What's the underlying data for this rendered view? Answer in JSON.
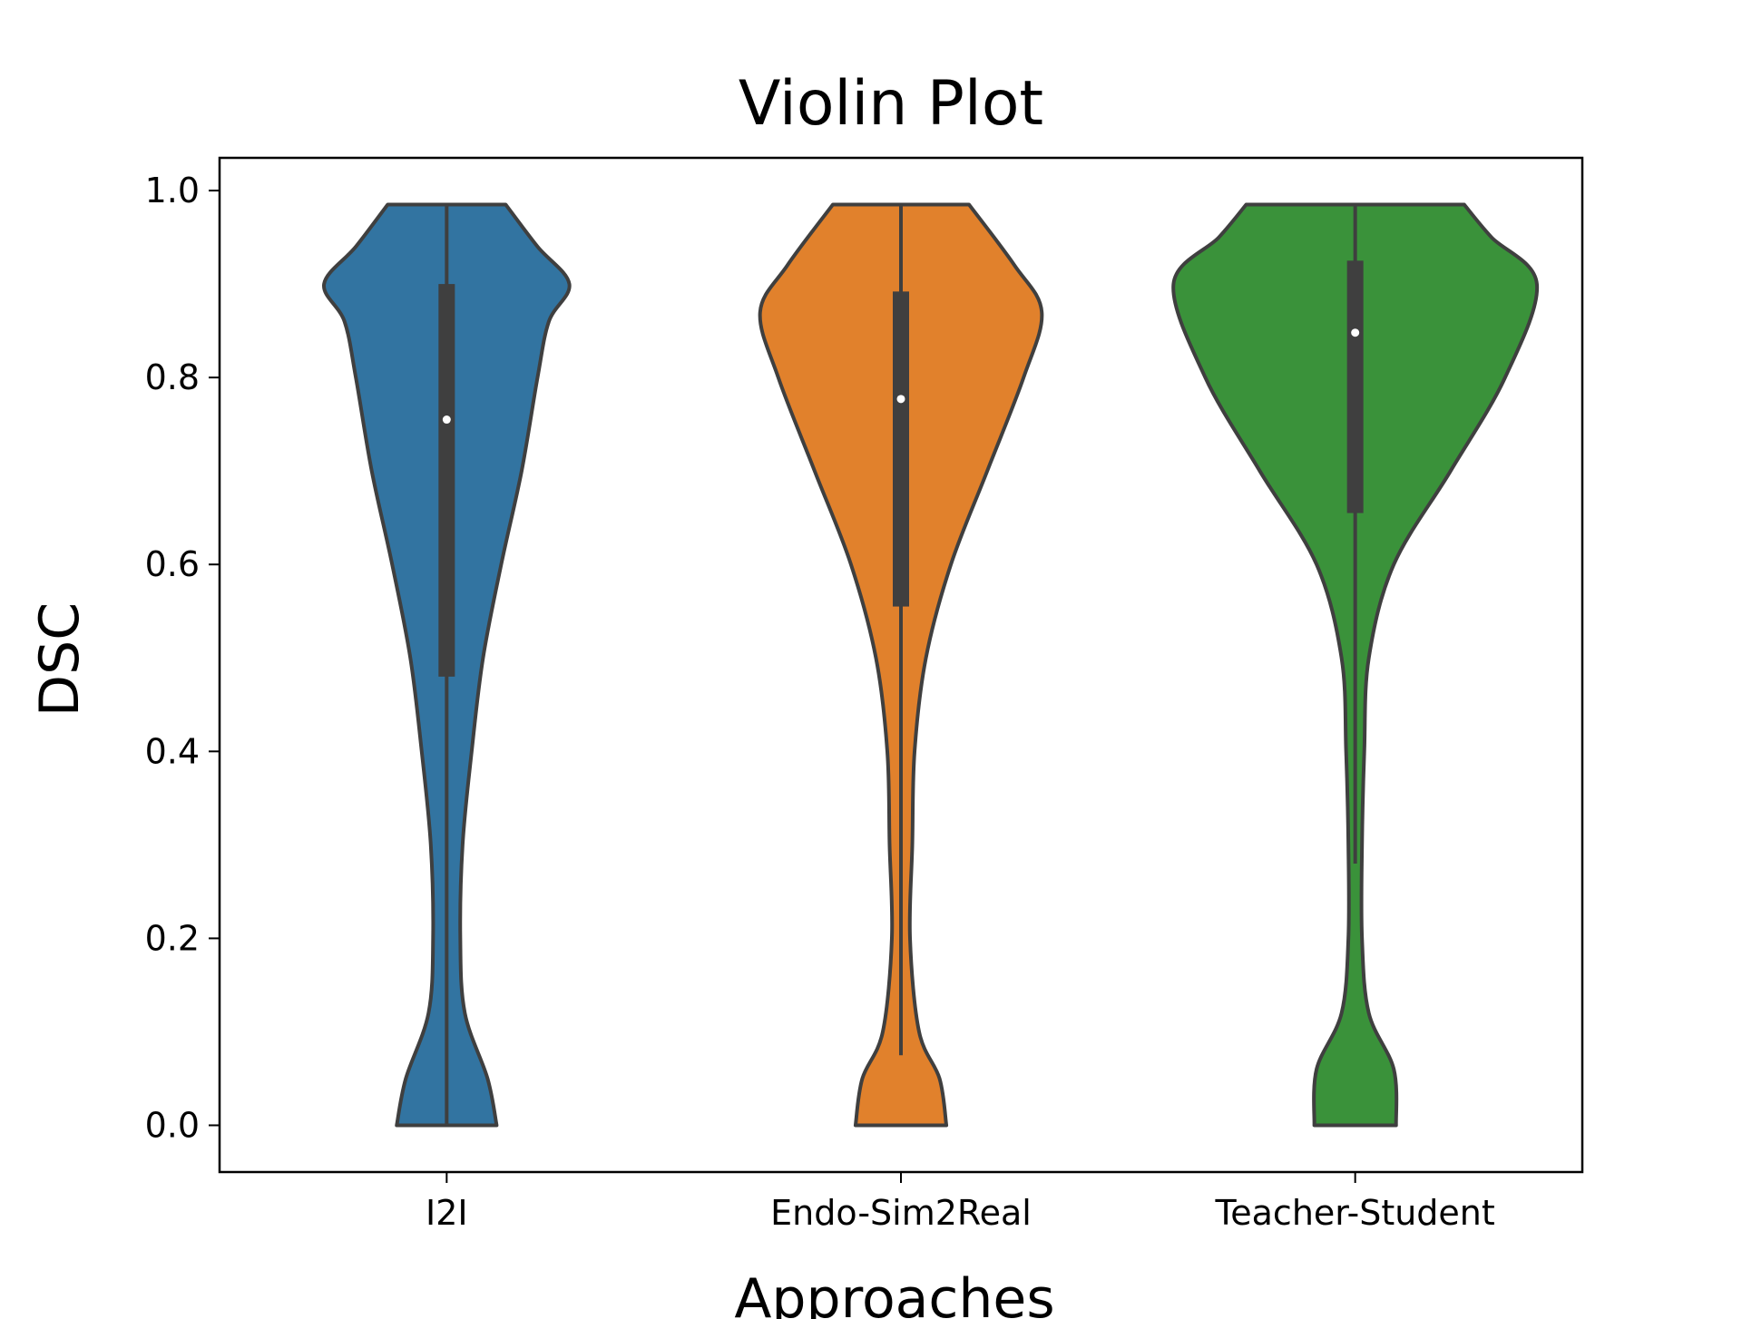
{
  "chart_data": {
    "type": "violin",
    "title": "Violin Plot",
    "xlabel": "Approaches",
    "ylabel": "DSC",
    "ylim": [
      -0.05,
      1.035
    ],
    "yticks": [
      "0.0",
      "0.2",
      "0.4",
      "0.6",
      "0.8",
      "1.0"
    ],
    "grid": false,
    "categories": [
      "I2I",
      "Endo-Sim2Real",
      "Teacher-Student"
    ],
    "series": [
      {
        "category": "I2I",
        "color": "#3274a1",
        "min": 0.0,
        "q1": 0.48,
        "median": 0.755,
        "q3": 0.9,
        "max": 0.985,
        "density": [
          [
            0.0,
            0.11
          ],
          [
            0.05,
            0.09
          ],
          [
            0.12,
            0.04
          ],
          [
            0.2,
            0.03
          ],
          [
            0.3,
            0.035
          ],
          [
            0.4,
            0.055
          ],
          [
            0.5,
            0.08
          ],
          [
            0.6,
            0.12
          ],
          [
            0.7,
            0.165
          ],
          [
            0.8,
            0.2
          ],
          [
            0.86,
            0.225
          ],
          [
            0.9,
            0.27
          ],
          [
            0.94,
            0.2
          ],
          [
            0.985,
            0.13
          ]
        ]
      },
      {
        "category": "Endo-Sim2Real",
        "color": "#e1812c",
        "min": 0.075,
        "q1": 0.555,
        "median": 0.777,
        "q3": 0.892,
        "max": 0.985,
        "density": [
          [
            0.0,
            0.1
          ],
          [
            0.05,
            0.085
          ],
          [
            0.1,
            0.04
          ],
          [
            0.2,
            0.02
          ],
          [
            0.3,
            0.025
          ],
          [
            0.4,
            0.03
          ],
          [
            0.5,
            0.055
          ],
          [
            0.6,
            0.11
          ],
          [
            0.7,
            0.19
          ],
          [
            0.8,
            0.27
          ],
          [
            0.87,
            0.31
          ],
          [
            0.92,
            0.25
          ],
          [
            0.985,
            0.15
          ]
        ]
      },
      {
        "category": "Teacher-Student",
        "color": "#3a923a",
        "min": 0.28,
        "q1": 0.655,
        "median": 0.848,
        "q3": 0.925,
        "max": 0.985,
        "density": [
          [
            0.0,
            0.09
          ],
          [
            0.06,
            0.085
          ],
          [
            0.12,
            0.03
          ],
          [
            0.2,
            0.015
          ],
          [
            0.3,
            0.015
          ],
          [
            0.4,
            0.02
          ],
          [
            0.5,
            0.03
          ],
          [
            0.6,
            0.085
          ],
          [
            0.7,
            0.21
          ],
          [
            0.8,
            0.33
          ],
          [
            0.9,
            0.4
          ],
          [
            0.95,
            0.3
          ],
          [
            0.985,
            0.24
          ]
        ]
      }
    ]
  }
}
